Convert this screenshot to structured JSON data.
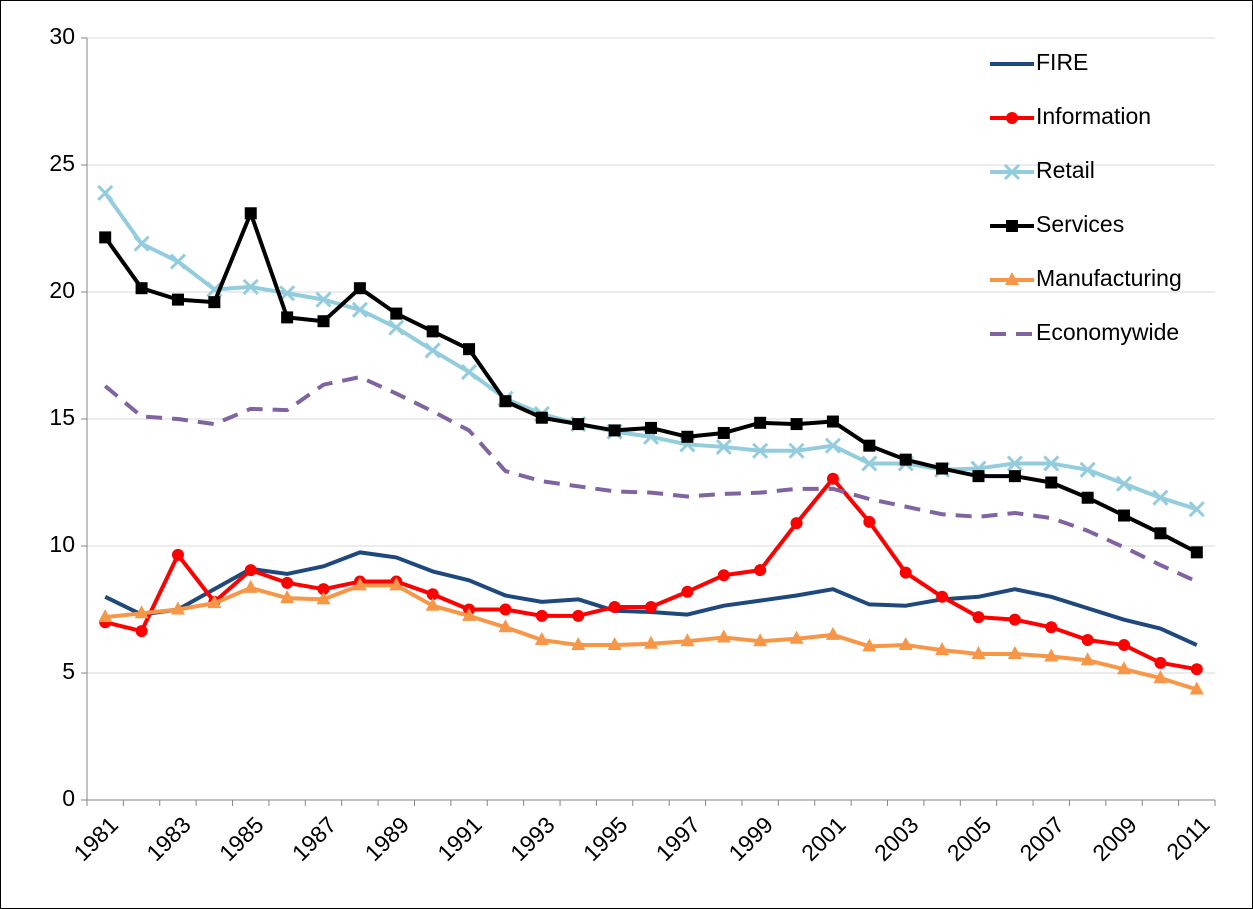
{
  "chart_data": {
    "type": "line",
    "categories": [
      "1981",
      null,
      "1983",
      null,
      "1985",
      null,
      "1987",
      null,
      "1989",
      null,
      "1991",
      null,
      "1993",
      null,
      "1995",
      null,
      "1997",
      null,
      "1999",
      null,
      "2001",
      null,
      "2003",
      null,
      "2005",
      null,
      "2007",
      null,
      "2009",
      null,
      "2011"
    ],
    "ylim": [
      0,
      30
    ],
    "yticks": [
      0,
      5,
      10,
      15,
      20,
      25,
      30
    ],
    "grid": true,
    "legend": "top-right",
    "series": [
      {
        "name": "FIRE",
        "color": "#1f497d",
        "marker": "none",
        "dash": false,
        "values": [
          8.0,
          7.3,
          7.5,
          8.3,
          9.1,
          8.9,
          9.2,
          9.75,
          9.55,
          9.0,
          8.65,
          8.05,
          7.8,
          7.9,
          7.45,
          7.4,
          7.3,
          7.65,
          7.85,
          8.05,
          8.3,
          7.7,
          7.65,
          7.9,
          8.0,
          8.3,
          8.0,
          7.55,
          7.1,
          6.75,
          6.1
        ]
      },
      {
        "name": "Information",
        "color": "#ff0000",
        "marker": "circle",
        "dash": false,
        "values": [
          7.0,
          6.65,
          9.65,
          7.8,
          9.05,
          8.55,
          8.3,
          8.6,
          8.6,
          8.1,
          7.5,
          7.5,
          7.25,
          7.25,
          7.6,
          7.6,
          8.2,
          8.85,
          9.05,
          10.9,
          12.65,
          10.95,
          8.95,
          8.0,
          7.2,
          7.1,
          6.8,
          6.3,
          6.1,
          5.4,
          5.15
        ]
      },
      {
        "name": "Retail",
        "color": "#93cddd",
        "marker": "cross",
        "dash": false,
        "values": [
          23.9,
          21.9,
          21.2,
          20.1,
          20.2,
          19.95,
          19.7,
          19.3,
          18.6,
          17.7,
          16.85,
          15.8,
          15.2,
          14.8,
          14.5,
          14.3,
          14.0,
          13.9,
          13.75,
          13.75,
          13.95,
          13.25,
          13.25,
          13.0,
          13.05,
          13.25,
          13.25,
          13.0,
          12.45,
          11.9,
          11.45
        ]
      },
      {
        "name": "Services",
        "color": "#000000",
        "marker": "square",
        "dash": false,
        "values": [
          22.15,
          20.15,
          19.7,
          19.6,
          23.1,
          19.0,
          18.85,
          20.15,
          19.15,
          18.45,
          17.75,
          15.7,
          15.05,
          14.8,
          14.55,
          14.65,
          14.3,
          14.45,
          14.85,
          14.8,
          14.9,
          13.95,
          13.4,
          13.05,
          12.75,
          12.75,
          12.5,
          11.9,
          11.2,
          10.5,
          9.75
        ]
      },
      {
        "name": "Manufacturing",
        "color": "#f79646",
        "marker": "triangle",
        "dash": false,
        "values": [
          7.2,
          7.35,
          7.5,
          7.75,
          8.35,
          7.95,
          7.9,
          8.45,
          8.45,
          7.65,
          7.25,
          6.8,
          6.3,
          6.1,
          6.1,
          6.15,
          6.25,
          6.4,
          6.25,
          6.35,
          6.5,
          6.05,
          6.1,
          5.9,
          5.75,
          5.75,
          5.65,
          5.5,
          5.15,
          4.8,
          4.35
        ]
      },
      {
        "name": "Economywide",
        "color": "#8064a2",
        "marker": "none",
        "dash": true,
        "values": [
          16.3,
          15.1,
          15.0,
          14.8,
          15.4,
          15.35,
          16.35,
          16.65,
          16.0,
          15.3,
          14.55,
          12.95,
          12.55,
          12.35,
          12.15,
          12.1,
          11.95,
          12.05,
          12.1,
          12.25,
          12.25,
          11.85,
          11.55,
          11.25,
          11.15,
          11.3,
          11.1,
          10.6,
          9.95,
          9.25,
          8.6
        ]
      }
    ]
  }
}
